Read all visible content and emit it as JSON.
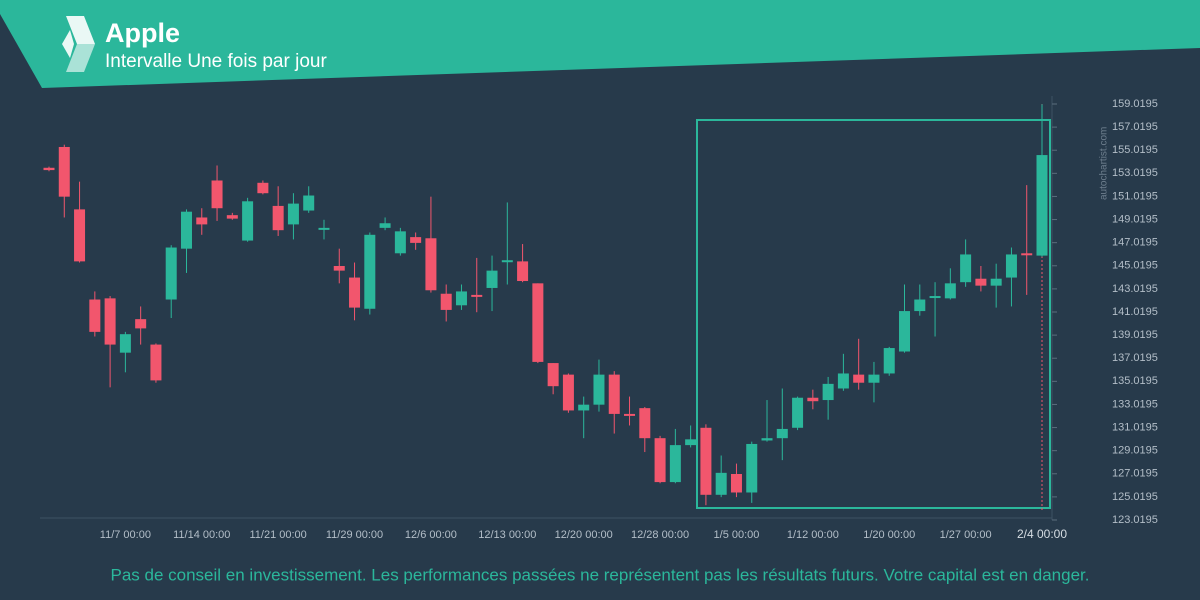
{
  "header": {
    "title": "Apple",
    "subtitle": "Intervalle Une fois par jour"
  },
  "chart_data": {
    "type": "candlestick",
    "categories": [
      null,
      null,
      null,
      null,
      null,
      "11/7 00:00",
      null,
      null,
      null,
      null,
      "11/14 00:00",
      null,
      null,
      null,
      null,
      "11/21 00:00",
      null,
      null,
      null,
      null,
      "11/29 00:00",
      null,
      null,
      null,
      null,
      "12/6 00:00",
      null,
      null,
      null,
      null,
      "12/13 00:00",
      null,
      null,
      null,
      null,
      "12/20 00:00",
      null,
      null,
      null,
      null,
      "12/28 00:00",
      null,
      null,
      null,
      null,
      "1/5 00:00",
      null,
      null,
      null,
      null,
      "1/12 00:00",
      null,
      null,
      null,
      null,
      "1/20 00:00",
      null,
      null,
      null,
      null,
      "1/27 00:00",
      null,
      null,
      null,
      null,
      "2/4 00:00"
    ],
    "open": [
      153.5,
      155.3,
      149.9,
      142.1,
      142.2,
      137.5,
      140.4,
      138.2,
      142.1,
      146.5,
      149.2,
      152.4,
      149.4,
      147.2,
      152.2,
      150.2,
      148.6,
      149.8,
      148.3,
      145.0,
      144.0,
      141.3,
      148.3,
      146.1,
      147.5,
      147.4,
      142.6,
      141.6,
      142.5,
      143.1,
      145.4,
      145.4,
      143.5,
      136.6,
      135.6,
      132.5,
      133.0,
      135.6,
      132.2,
      132.7,
      130.1,
      126.3,
      129.5,
      131.0,
      125.2,
      127.0,
      125.4,
      129.9,
      130.1,
      131.0,
      133.6,
      133.4,
      134.4,
      135.6,
      134.9,
      135.7,
      137.6,
      141.1,
      142.3,
      142.2,
      143.6,
      143.9,
      143.3,
      144.0,
      146.1,
      145.9
    ],
    "high": [
      153.6,
      155.5,
      152.3,
      142.8,
      142.4,
      139.3,
      141.5,
      138.3,
      146.8,
      149.9,
      150.0,
      153.7,
      149.6,
      150.9,
      152.4,
      151.9,
      151.3,
      151.9,
      149.0,
      146.5,
      145.3,
      147.9,
      149.2,
      148.3,
      147.9,
      151.0,
      143.4,
      143.4,
      145.7,
      145.9,
      150.5,
      146.9,
      143.5,
      136.6,
      135.7,
      133.7,
      136.9,
      135.9,
      133.7,
      132.8,
      130.3,
      130.9,
      131.2,
      131.3,
      128.6,
      127.9,
      129.8,
      133.4,
      134.4,
      133.7,
      134.3,
      135.4,
      137.4,
      138.7,
      136.7,
      138.0,
      143.4,
      143.4,
      143.6,
      144.8,
      147.3,
      145.0,
      145.2,
      146.6,
      152.0,
      159.0
    ],
    "low": [
      153.2,
      149.2,
      145.3,
      138.9,
      134.5,
      135.8,
      138.2,
      134.9,
      140.5,
      144.4,
      147.7,
      148.9,
      149.0,
      147.1,
      151.2,
      147.6,
      147.3,
      149.6,
      147.3,
      143.5,
      140.3,
      140.8,
      148.1,
      145.9,
      146.4,
      142.7,
      140.2,
      141.2,
      141.0,
      141.1,
      143.4,
      143.6,
      136.6,
      133.9,
      132.3,
      130.1,
      132.4,
      130.5,
      131.2,
      128.9,
      126.2,
      126.2,
      129.3,
      124.3,
      125.0,
      125.0,
      124.5,
      129.8,
      128.2,
      130.8,
      132.6,
      131.7,
      134.2,
      134.3,
      133.2,
      135.5,
      137.5,
      140.7,
      138.9,
      142.1,
      143.2,
      142.8,
      141.4,
      141.5,
      142.5,
      145.8
    ],
    "close": [
      153.3,
      151.0,
      145.4,
      139.3,
      138.2,
      139.1,
      139.6,
      135.1,
      146.6,
      149.7,
      148.6,
      150.0,
      149.1,
      150.6,
      151.3,
      148.1,
      150.4,
      151.1,
      148.3,
      144.6,
      141.4,
      147.7,
      148.7,
      148.0,
      147.0,
      142.9,
      141.2,
      142.8,
      142.4,
      144.6,
      145.5,
      143.7,
      136.7,
      134.6,
      132.5,
      133.0,
      135.6,
      132.2,
      132.1,
      130.1,
      126.3,
      129.5,
      130.0,
      125.2,
      127.1,
      125.4,
      129.6,
      130.1,
      130.9,
      133.6,
      133.3,
      134.8,
      135.7,
      134.9,
      135.6,
      137.9,
      141.1,
      142.1,
      142.4,
      143.5,
      146.0,
      143.3,
      143.9,
      146.0,
      146.0,
      154.6
    ],
    "up_color": "#2bb79b",
    "down_color": "#f2566d",
    "ylim": [
      123.0195,
      159.0195
    ],
    "yticks": [
      123.0195,
      125.0195,
      127.0195,
      129.0195,
      131.0195,
      133.0195,
      135.0195,
      137.0195,
      139.0195,
      141.0195,
      143.0195,
      145.0195,
      147.0195,
      149.0195,
      151.0195,
      153.0195,
      155.0195,
      157.0195,
      159.0195
    ],
    "watermark": "autochartist.com"
  },
  "footer": "Pas de conseil en investissement. Les performances passées ne représentent pas les résultats futurs. Votre capital est en danger."
}
